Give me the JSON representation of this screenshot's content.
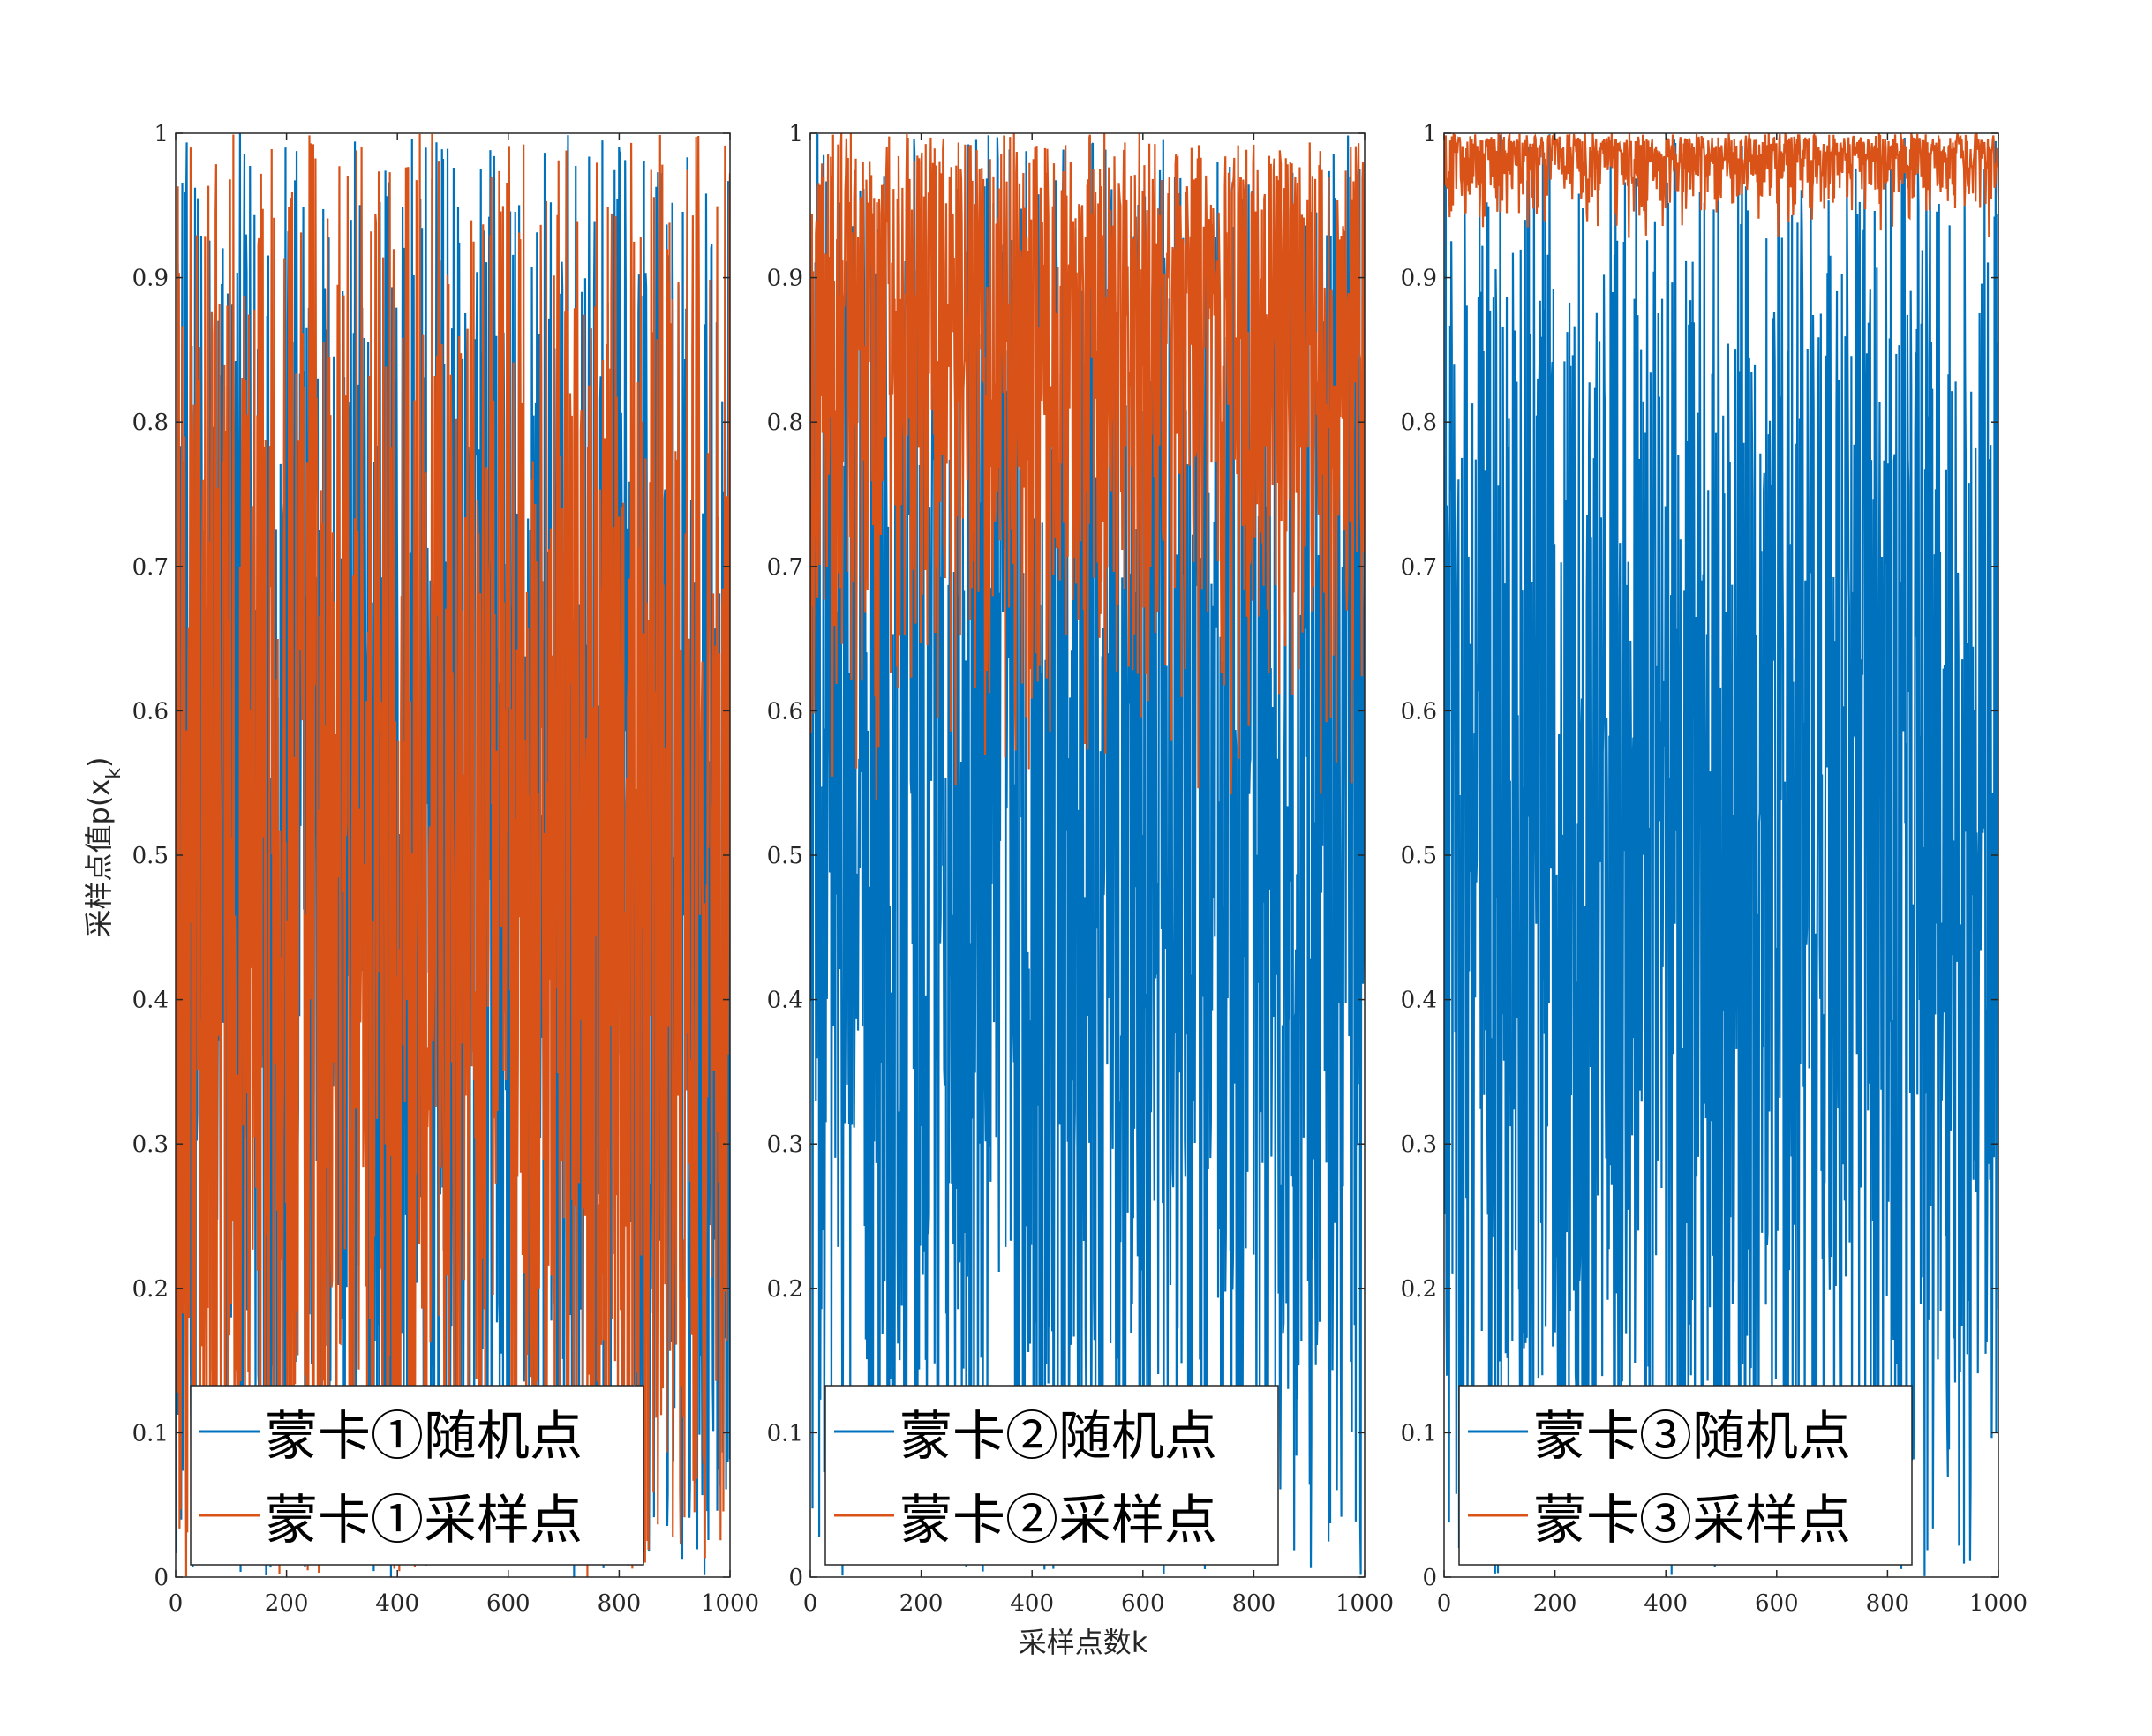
{
  "colors": {
    "blue": "#0072BD",
    "orange": "#D95319",
    "axis": "#262626"
  },
  "figure": {
    "ylabel": "采样点值p(x",
    "ylabel_sub": "k",
    "ylabel_end": ")",
    "xlabel": "采样点数k"
  },
  "chart_data": [
    {
      "type": "line",
      "title": "",
      "xlim": [
        0,
        1000
      ],
      "ylim": [
        0,
        1
      ],
      "xticks": [
        "0",
        "200",
        "400",
        "600",
        "800",
        "1000"
      ],
      "yticks": [
        "0",
        "0.1",
        "0.2",
        "0.3",
        "0.4",
        "0.5",
        "0.6",
        "0.7",
        "0.8",
        "0.9",
        "1"
      ],
      "legend_position": "bottom-left",
      "grid": false,
      "n_points": 1000,
      "series": [
        {
          "name": "蒙卡①随机点",
          "color": "#0072BD",
          "min": 0.0,
          "max": 1.0,
          "distribution": "uniform"
        },
        {
          "name": "蒙卡①采样点",
          "color": "#D95319",
          "min": 0.0,
          "max": 1.0,
          "distribution": "uniform"
        }
      ]
    },
    {
      "type": "line",
      "title": "",
      "xlim": [
        0,
        1000
      ],
      "ylim": [
        0,
        1
      ],
      "xticks": [
        "0",
        "200",
        "400",
        "600",
        "800",
        "1000"
      ],
      "yticks": [
        "0",
        "0.1",
        "0.2",
        "0.3",
        "0.4",
        "0.5",
        "0.6",
        "0.7",
        "0.8",
        "0.9",
        "1"
      ],
      "legend_position": "bottom-left",
      "grid": false,
      "n_points": 1000,
      "series": [
        {
          "name": "蒙卡②随机点",
          "color": "#0072BD",
          "min": 0.0,
          "max": 1.0,
          "distribution": "uniform"
        },
        {
          "name": "蒙卡②采样点",
          "color": "#D95319",
          "min": 0.52,
          "max": 1.0,
          "distribution": "sqrt"
        }
      ]
    },
    {
      "type": "line",
      "title": "",
      "xlim": [
        0,
        1000
      ],
      "ylim": [
        0,
        1
      ],
      "xticks": [
        "0",
        "200",
        "400",
        "600",
        "800",
        "1000"
      ],
      "yticks": [
        "0",
        "0.1",
        "0.2",
        "0.3",
        "0.4",
        "0.5",
        "0.6",
        "0.7",
        "0.8",
        "0.9",
        "1"
      ],
      "legend_position": "bottom-left",
      "grid": false,
      "n_points": 1000,
      "series": [
        {
          "name": "蒙卡③随机点",
          "color": "#0072BD",
          "min": 0.0,
          "max": 1.0,
          "distribution": "uniform"
        },
        {
          "name": "蒙卡③采样点",
          "color": "#D95319",
          "min": 0.92,
          "max": 1.0,
          "distribution": "cbrt"
        }
      ]
    }
  ]
}
